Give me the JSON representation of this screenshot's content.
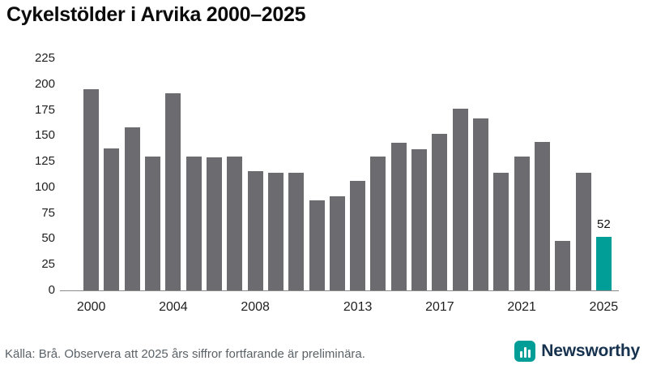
{
  "title": "Cykelstölder i Arvika 2000–2025",
  "footer": {
    "source": "Källa: Brå. Observera att 2025 års siffror fortfarande är preliminära."
  },
  "brand": {
    "name": "Newsworthy",
    "icon": "bar-chart-icon",
    "icon_color": "#009e96",
    "text_color": "#16324f"
  },
  "chart_data": {
    "type": "bar",
    "title": "Cykelstölder i Arvika 2000–2025",
    "x": [
      2000,
      2001,
      2002,
      2003,
      2004,
      2005,
      2006,
      2007,
      2008,
      2009,
      2010,
      2011,
      2012,
      2013,
      2014,
      2015,
      2016,
      2017,
      2018,
      2019,
      2020,
      2021,
      2022,
      2023,
      2024,
      2025
    ],
    "values": [
      195,
      138,
      158,
      130,
      191,
      130,
      129,
      130,
      116,
      114,
      114,
      87,
      91,
      106,
      130,
      143,
      137,
      152,
      176,
      167,
      114,
      130,
      144,
      48,
      114,
      52
    ],
    "bar_color": "#6b6b70",
    "highlight_index": 25,
    "highlight_color": "#009e96",
    "ylim": [
      0,
      225
    ],
    "yticks": [
      0,
      25,
      50,
      75,
      100,
      125,
      150,
      175,
      200,
      225
    ],
    "xticks": [
      2000,
      2004,
      2008,
      2013,
      2017,
      2021,
      2025
    ],
    "grid": false,
    "legend": false,
    "annotations": [
      {
        "x": 2025,
        "text": "52"
      }
    ]
  }
}
